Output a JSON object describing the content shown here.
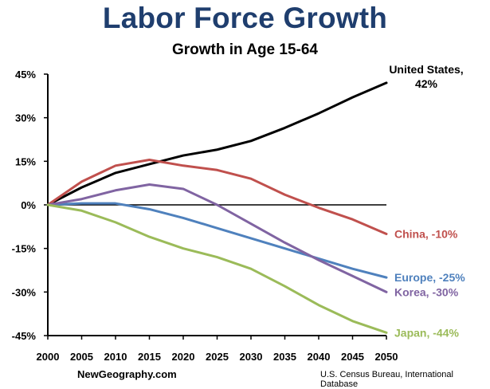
{
  "header": {
    "title": "Labor Force Growth",
    "subtitle": "Growth in Age 15-64"
  },
  "footer": {
    "left": "NewGeography.com",
    "right": "U.S. Census Bureau, International Database"
  },
  "chart_data": {
    "type": "line",
    "title": "Labor Force Growth",
    "subtitle": "Growth in Age 15-64",
    "x": [
      2000,
      2005,
      2010,
      2015,
      2020,
      2025,
      2030,
      2035,
      2040,
      2045,
      2050
    ],
    "ylim": [
      -45,
      45
    ],
    "yticks": [
      "45%",
      "30%",
      "15%",
      "0%",
      "-15%",
      "-30%",
      "-45%"
    ],
    "ytick_values": [
      45,
      30,
      15,
      0,
      -15,
      -30,
      -45
    ],
    "xticks": [
      "2000",
      "2005",
      "2010",
      "2015",
      "2020",
      "2025",
      "2030",
      "2035",
      "2040",
      "2045",
      "2050"
    ],
    "grid": false,
    "legend": "end-labels",
    "series": [
      {
        "name": "United States",
        "label": "United States,",
        "label2": "42%",
        "color": "#000000",
        "values": [
          0,
          6,
          11,
          14,
          17,
          19,
          22,
          26.5,
          31.5,
          37,
          42
        ]
      },
      {
        "name": "China",
        "label": "China, -10%",
        "color": "#c0504d",
        "values": [
          0,
          8,
          13.5,
          15.5,
          13.5,
          12,
          9,
          3.5,
          -1,
          -5,
          -10
        ]
      },
      {
        "name": "Europe",
        "label": "Europe, -25%",
        "color": "#4f81bd",
        "values": [
          0,
          0.5,
          0.5,
          -1.5,
          -4.5,
          -8,
          -11.5,
          -15,
          -18.5,
          -22,
          -25
        ]
      },
      {
        "name": "Korea",
        "label": "Korea, -30%",
        "color": "#8064a2",
        "values": [
          0,
          2,
          5,
          7,
          5.5,
          0,
          -6.5,
          -13,
          -19,
          -24.5,
          -30
        ]
      },
      {
        "name": "Japan",
        "label": "Japan, -44%",
        "color": "#9bbb59",
        "values": [
          0,
          -2,
          -6,
          -11,
          -15,
          -18,
          -22,
          -28,
          -34.5,
          -40,
          -44
        ]
      }
    ]
  }
}
